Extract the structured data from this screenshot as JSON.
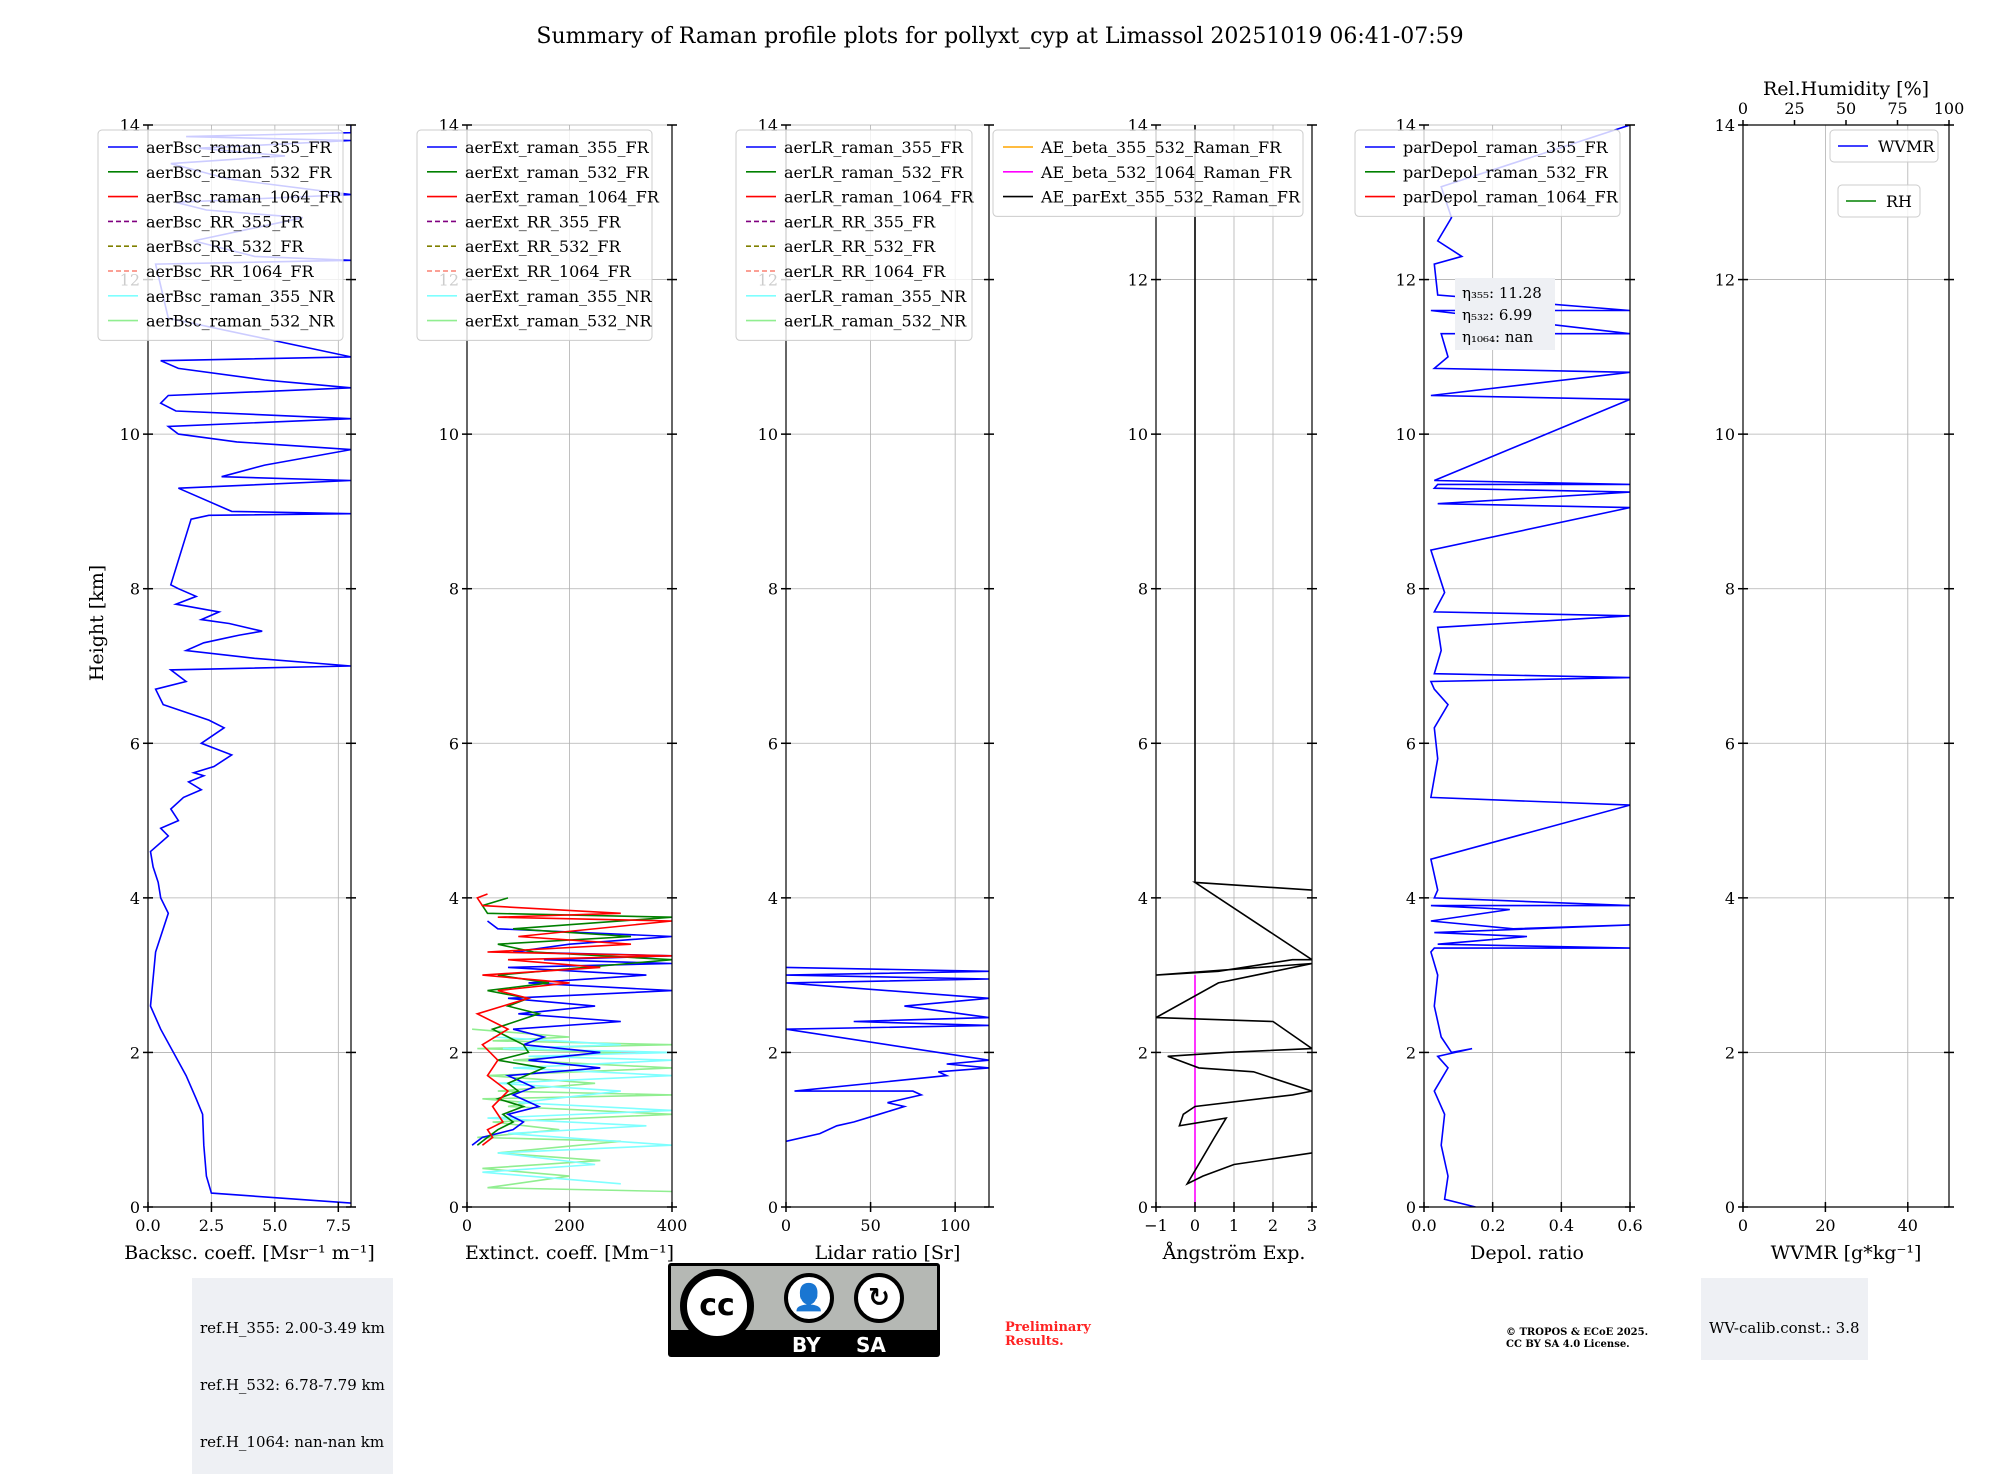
{
  "title": "Summary of Raman profile plots for pollyxt_cyp at Limassol 20251019 06:41-07:59",
  "ylabel": "Height [km]",
  "colors": {
    "blue": "#0000ff",
    "green": "#008000",
    "red": "#ff0000",
    "purple": "#800080",
    "olive": "#808000",
    "salmon": "#fa8072",
    "cyan": "#7fffff",
    "lightgreen": "#90ee90",
    "orange": "#ffa500",
    "magenta": "#ff00ff",
    "black": "#000000"
  },
  "chart_data": [
    {
      "type": "line",
      "xlabel": "Backsc. coeff. [Msr⁻¹ m⁻¹]",
      "xlim": [
        0,
        8
      ],
      "ylim": [
        0,
        14
      ],
      "xticks": [
        "0.0",
        "2.5",
        "5.0",
        "7.5"
      ],
      "legend": [
        "aerBsc_raman_355_FR",
        "aerBsc_raman_532_FR",
        "aerBsc_raman_1064_FR",
        "aerBsc_RR_355_FR",
        "aerBsc_RR_532_FR",
        "aerBsc_RR_1064_FR",
        "aerBsc_raman_355_NR",
        "aerBsc_raman_532_NR"
      ],
      "legend_colors": [
        "blue",
        "green",
        "red",
        "purple",
        "olive",
        "salmon",
        "cyan",
        "lightgreen"
      ],
      "legend_dashed": [
        false,
        false,
        false,
        true,
        true,
        true,
        false,
        false
      ],
      "series": [
        {
          "name": "aerBsc_raman_355_FR",
          "color": "blue",
          "x": [
            8.0,
            2.5,
            2.3,
            2.2,
            2.15,
            1.9,
            1.5,
            1.0,
            0.5,
            0.1,
            0.3,
            0.8,
            0.5,
            0.4,
            0.2,
            0.1,
            0.8,
            0.5,
            1.2,
            0.9,
            1.4,
            2.1,
            1.6,
            2.2,
            1.8,
            2.6,
            3.3,
            2.1,
            3.0,
            2.4,
            0.6,
            0.3,
            1.5,
            0.9,
            8.0,
            4.2,
            1.5,
            2.2,
            3.6,
            4.5,
            3.2,
            2.1,
            2.8,
            1.1,
            1.9,
            1.2,
            0.9,
            1.7,
            2.4,
            8.0,
            3.3,
            1.2,
            8.0,
            2.9,
            4.6,
            8.0,
            3.5,
            1.2,
            0.8,
            8.0,
            1.1,
            0.5,
            0.8,
            8.0,
            4.6,
            1.2,
            0.5,
            8.0,
            0.8,
            0.3,
            8.0,
            4.2,
            1.8,
            6.1,
            2.3,
            1.1,
            8.0,
            3.2,
            0.9,
            5.4,
            2.0,
            8.0,
            1.5,
            8.0,
            8.0
          ],
          "y": [
            0.05,
            0.18,
            0.4,
            0.8,
            1.2,
            1.4,
            1.7,
            2.0,
            2.3,
            2.6,
            3.3,
            3.8,
            4.0,
            4.2,
            4.4,
            4.6,
            4.8,
            4.9,
            5.0,
            5.15,
            5.3,
            5.4,
            5.5,
            5.58,
            5.62,
            5.7,
            5.85,
            6.0,
            6.2,
            6.3,
            6.5,
            6.7,
            6.8,
            6.95,
            7.0,
            7.1,
            7.2,
            7.3,
            7.4,
            7.45,
            7.55,
            7.6,
            7.7,
            7.8,
            7.9,
            8.0,
            8.05,
            8.9,
            8.95,
            8.97,
            9.0,
            9.3,
            9.4,
            9.45,
            9.6,
            9.8,
            9.9,
            10.0,
            10.1,
            10.2,
            10.3,
            10.4,
            10.5,
            10.6,
            10.7,
            10.85,
            10.95,
            11.0,
            11.5,
            12.2,
            12.25,
            12.3,
            12.5,
            12.8,
            12.9,
            13.0,
            13.1,
            13.3,
            13.5,
            13.6,
            13.7,
            13.8,
            13.85,
            13.9,
            14.0
          ]
        }
      ]
    },
    {
      "type": "line",
      "xlabel": "Extinct. coeff. [Mm⁻¹]",
      "xlim": [
        0,
        400
      ],
      "ylim": [
        0,
        14
      ],
      "xticks": [
        "0",
        "200",
        "400"
      ],
      "legend": [
        "aerExt_raman_355_FR",
        "aerExt_raman_532_FR",
        "aerExt_raman_1064_FR",
        "aerExt_RR_355_FR",
        "aerExt_RR_532_FR",
        "aerExt_RR_1064_FR",
        "aerExt_raman_355_NR",
        "aerExt_raman_532_NR"
      ],
      "legend_colors": [
        "blue",
        "green",
        "red",
        "purple",
        "olive",
        "salmon",
        "cyan",
        "lightgreen"
      ],
      "legend_dashed": [
        false,
        false,
        false,
        true,
        true,
        true,
        false,
        false
      ],
      "series": [
        {
          "name": "aerExt_raman_532_NR",
          "color": "lightgreen",
          "x": [
            400,
            40,
            200,
            30,
            260,
            60,
            300,
            20,
            180,
            50,
            400,
            80,
            120,
            30,
            400,
            60,
            250,
            40,
            400,
            90,
            300,
            20,
            400,
            50,
            200,
            10
          ],
          "y": [
            0.2,
            0.25,
            0.4,
            0.5,
            0.6,
            0.7,
            0.85,
            0.9,
            1.0,
            1.1,
            1.2,
            1.3,
            1.35,
            1.4,
            1.45,
            1.5,
            1.6,
            1.7,
            1.8,
            1.9,
            2.0,
            2.05,
            2.1,
            2.15,
            2.2,
            2.3
          ]
        },
        {
          "name": "aerExt_raman_355_NR",
          "color": "cyan",
          "x": [
            300,
            30,
            250,
            60,
            400,
            80,
            350,
            40,
            400,
            100,
            300,
            60,
            400,
            90,
            400,
            120,
            400,
            70,
            300,
            50
          ],
          "y": [
            0.3,
            0.45,
            0.55,
            0.7,
            0.8,
            0.95,
            1.05,
            1.15,
            1.25,
            1.35,
            1.5,
            1.6,
            1.7,
            1.8,
            1.9,
            1.95,
            2.0,
            2.05,
            2.1,
            2.2
          ]
        },
        {
          "name": "aerExt_raman_355_FR",
          "color": "blue",
          "x": [
            10,
            30,
            90,
            110,
            80,
            140,
            90,
            130,
            80,
            260,
            120,
            260,
            110,
            150,
            90,
            300,
            100,
            250,
            80,
            400,
            120,
            350,
            80,
            400,
            150,
            400,
            90,
            200,
            400,
            60,
            40
          ],
          "y": [
            0.8,
            0.9,
            1.0,
            1.1,
            1.2,
            1.3,
            1.45,
            1.55,
            1.7,
            1.8,
            1.9,
            2.0,
            2.1,
            2.2,
            2.3,
            2.4,
            2.5,
            2.6,
            2.7,
            2.8,
            2.9,
            3.0,
            3.1,
            3.15,
            3.2,
            3.25,
            3.3,
            3.4,
            3.5,
            3.6,
            3.7
          ]
        },
        {
          "name": "aerExt_raman_532_FR",
          "color": "green",
          "x": [
            20,
            40,
            60,
            90,
            70,
            110,
            60,
            100,
            80,
            150,
            60,
            120,
            110,
            50,
            140,
            80,
            120,
            40,
            160,
            60,
            400,
            130,
            60,
            320,
            90,
            400,
            40,
            30,
            80
          ],
          "y": [
            0.8,
            0.9,
            1.0,
            1.1,
            1.2,
            1.3,
            1.4,
            1.5,
            1.6,
            1.8,
            1.9,
            2.0,
            2.1,
            2.3,
            2.5,
            2.6,
            2.7,
            2.8,
            2.9,
            3.0,
            3.2,
            3.3,
            3.4,
            3.5,
            3.6,
            3.75,
            3.8,
            3.9,
            4.0
          ]
        },
        {
          "name": "aerExt_raman_1064_FR",
          "color": "red",
          "x": [
            30,
            50,
            40,
            70,
            50,
            80,
            40,
            60,
            30,
            80,
            20,
            120,
            60,
            200,
            30,
            260,
            80,
            400,
            40,
            320,
            100,
            400,
            60,
            300,
            30,
            20,
            40
          ],
          "y": [
            0.8,
            0.9,
            1.0,
            1.1,
            1.3,
            1.5,
            1.7,
            1.9,
            2.1,
            2.3,
            2.5,
            2.7,
            2.8,
            2.9,
            3.0,
            3.1,
            3.2,
            3.25,
            3.3,
            3.4,
            3.5,
            3.7,
            3.75,
            3.8,
            3.9,
            4.0,
            4.05
          ]
        }
      ]
    },
    {
      "type": "line",
      "xlabel": "Lidar ratio [Sr]",
      "xlim": [
        0,
        120
      ],
      "ylim": [
        0,
        14
      ],
      "xticks": [
        "0",
        "50",
        "100"
      ],
      "legend": [
        "aerLR_raman_355_FR",
        "aerLR_raman_532_FR",
        "aerLR_raman_1064_FR",
        "aerLR_RR_355_FR",
        "aerLR_RR_532_FR",
        "aerLR_RR_1064_FR",
        "aerLR_raman_355_NR",
        "aerLR_raman_532_NR"
      ],
      "legend_colors": [
        "blue",
        "green",
        "red",
        "purple",
        "olive",
        "salmon",
        "cyan",
        "lightgreen"
      ],
      "legend_dashed": [
        false,
        false,
        false,
        true,
        true,
        true,
        false,
        false
      ],
      "series": [
        {
          "name": "aerLR_raman_355_FR",
          "color": "blue",
          "x": [
            0,
            20,
            30,
            40,
            55,
            70,
            60,
            80,
            75,
            5,
            95,
            90,
            120,
            95,
            120,
            0,
            120,
            40,
            120,
            70,
            120,
            0,
            120,
            0,
            120,
            0
          ],
          "y": [
            0.85,
            0.95,
            1.05,
            1.1,
            1.2,
            1.3,
            1.35,
            1.45,
            1.5,
            1.5,
            1.7,
            1.75,
            1.8,
            1.85,
            1.9,
            2.3,
            2.35,
            2.4,
            2.45,
            2.6,
            2.7,
            2.9,
            2.95,
            3.0,
            3.05,
            3.1
          ]
        }
      ]
    },
    {
      "type": "line",
      "xlabel": "Ångström Exp.",
      "xlim": [
        -1,
        3
      ],
      "ylim": [
        0,
        14
      ],
      "xticks": [
        "−1",
        "0",
        "1",
        "2",
        "3"
      ],
      "legend": [
        "AE_beta_355_532_Raman_FR",
        "AE_beta_532_1064_Raman_FR",
        "AE_parExt_355_532_Raman_FR"
      ],
      "legend_colors": [
        "orange",
        "magenta",
        "black"
      ],
      "legend_dashed": [
        false,
        false,
        false
      ],
      "series": [
        {
          "name": "AE_beta_532_1064_Raman_FR",
          "color": "magenta",
          "x": [
            0,
            0
          ],
          "y": [
            0.0,
            3.0
          ]
        },
        {
          "name": "AE_parExt_355_532_Raman_FR",
          "color": "black",
          "x": [
            3.0,
            1.0,
            0.2,
            -0.2,
            0.5,
            0.8,
            -0.4,
            -0.3,
            0.0,
            2.5,
            3.0,
            1.5,
            0.1,
            -0.7,
            0.8,
            3.0,
            2.0,
            -1.0,
            0.6,
            3.0,
            -1.0,
            0.6,
            2.5,
            3.0,
            0.0,
            3.0,
            0.0,
            0.0
          ],
          "y": [
            0.7,
            0.55,
            0.4,
            0.3,
            0.9,
            1.15,
            1.05,
            1.2,
            1.3,
            1.45,
            1.5,
            1.75,
            1.8,
            1.95,
            2.0,
            2.05,
            2.4,
            2.45,
            2.9,
            3.15,
            3.0,
            3.05,
            3.2,
            3.2,
            4.2,
            4.1,
            4.2,
            14.0
          ]
        }
      ]
    },
    {
      "type": "line",
      "xlabel": "Depol. ratio",
      "xlim": [
        0,
        0.6
      ],
      "ylim": [
        0,
        14
      ],
      "xticks": [
        "0.0",
        "0.2",
        "0.4",
        "0.6"
      ],
      "legend": [
        "parDepol_raman_355_FR",
        "parDepol_raman_532_FR",
        "parDepol_raman_1064_FR"
      ],
      "legend_colors": [
        "blue",
        "green",
        "red"
      ],
      "legend_dashed": [
        false,
        false,
        false
      ],
      "annotation": [
        "η₃₅₅: 11.28",
        "η₅₃₂: 6.99",
        "η₁₀₆₄: nan"
      ],
      "series": [
        {
          "name": "parDepol_raman_355_FR",
          "color": "blue",
          "x": [
            0.15,
            0.06,
            0.07,
            0.05,
            0.06,
            0.03,
            0.07,
            0.04,
            0.14,
            0.08,
            0.05,
            0.03,
            0.04,
            0.02,
            0.03,
            0.6,
            0.04,
            0.3,
            0.03,
            0.6,
            0.26,
            0.02,
            0.25,
            0.02,
            0.6,
            0.03,
            0.04,
            0.02,
            0.6,
            0.02,
            0.04,
            0.03,
            0.07,
            0.03,
            0.02,
            0.6,
            0.03,
            0.05,
            0.04,
            0.6,
            0.03,
            0.06,
            0.02,
            0.6,
            0.04,
            0.6,
            0.03,
            0.04,
            0.6,
            0.03,
            0.6,
            0.02,
            0.6,
            0.03,
            0.07,
            0.05,
            0.6,
            0.02,
            0.6,
            0.04,
            0.03,
            0.11,
            0.04,
            0.08,
            0.05,
            0.6
          ],
          "y": [
            0.0,
            0.1,
            0.4,
            0.8,
            1.2,
            1.5,
            1.8,
            1.95,
            2.05,
            2.0,
            2.2,
            2.6,
            3.0,
            3.3,
            3.35,
            3.35,
            3.4,
            3.5,
            3.55,
            3.65,
            3.6,
            3.7,
            3.85,
            3.9,
            3.9,
            4.0,
            4.1,
            4.5,
            5.2,
            5.3,
            5.8,
            6.2,
            6.5,
            6.7,
            6.8,
            6.85,
            6.9,
            7.2,
            7.5,
            7.65,
            7.7,
            7.95,
            8.5,
            9.05,
            9.1,
            9.25,
            9.3,
            9.35,
            9.35,
            9.4,
            10.45,
            10.5,
            10.8,
            10.85,
            11.0,
            11.3,
            11.3,
            11.6,
            11.6,
            11.8,
            12.2,
            12.3,
            12.5,
            12.8,
            13.2,
            14.0
          ]
        }
      ]
    },
    {
      "type": "line",
      "xlabel": "WVMR [g*kg⁻¹]",
      "xlim": [
        0,
        50
      ],
      "ylim": [
        0,
        14
      ],
      "xticks": [
        "0",
        "20",
        "40"
      ],
      "top_axis_label": "Rel.Humidity [%]",
      "top_xticks": [
        "0",
        "25",
        "50",
        "75",
        "100"
      ],
      "legend": [
        "WVMR"
      ],
      "legend2": [
        "RH"
      ],
      "legend_colors": [
        "blue"
      ],
      "legend2_colors": [
        "green"
      ],
      "legend_dashed": [
        false
      ],
      "series": []
    }
  ],
  "info": {
    "refh": [
      "ref.H_355: 2.00-3.49 km",
      "ref.H_532: 6.78-7.79 km",
      "ref.H_1064: nan-nan km"
    ],
    "wv_calib": "WV-calib.const.: 3.8",
    "preliminary": [
      "Preliminary",
      "Results."
    ],
    "copyright": [
      "© TROPOS & ECoE 2025.",
      "CC BY SA 4.0 License."
    ],
    "license": {
      "cc": "cc",
      "by": "BY",
      "sa": "SA"
    }
  }
}
